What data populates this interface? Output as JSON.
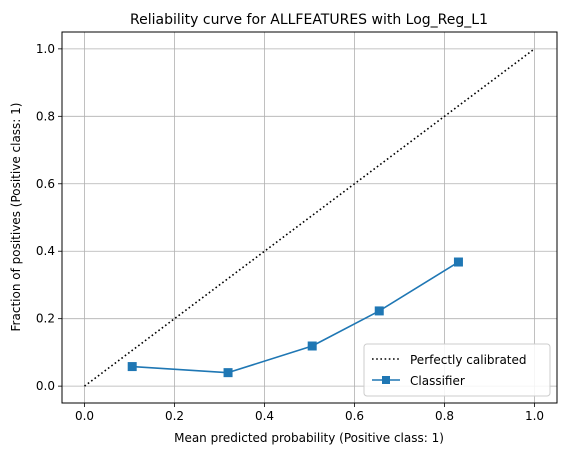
{
  "chart_data": {
    "type": "line",
    "title": "Reliability curve for ALLFEATURES with Log_Reg_L1",
    "xlabel": "Mean predicted probability (Positive class: 1)",
    "ylabel": "Fraction of positives (Positive class: 1)",
    "xlim": [
      -0.05,
      1.05
    ],
    "ylim": [
      -0.05,
      1.05
    ],
    "grid": true,
    "legend_position": "bottom-right",
    "xticks": [
      0.0,
      0.2,
      0.4,
      0.6,
      0.8,
      1.0
    ],
    "yticks": [
      0.0,
      0.2,
      0.4,
      0.6,
      0.8,
      1.0
    ],
    "xtick_labels": [
      "0.0",
      "0.2",
      "0.4",
      "0.6",
      "0.8",
      "1.0"
    ],
    "ytick_labels": [
      "0.0",
      "0.2",
      "0.4",
      "0.6",
      "0.8",
      "1.0"
    ],
    "series": [
      {
        "name": "Perfectly calibrated",
        "style": "dotted",
        "color": "#000000",
        "x": [
          0,
          1
        ],
        "y": [
          0,
          1
        ]
      },
      {
        "name": "Classifier",
        "style": "solid-square-markers",
        "color": "#1f77b4",
        "x": [
          0.106,
          0.319,
          0.506,
          0.655,
          0.831
        ],
        "y": [
          0.058,
          0.04,
          0.119,
          0.223,
          0.368
        ]
      }
    ]
  }
}
